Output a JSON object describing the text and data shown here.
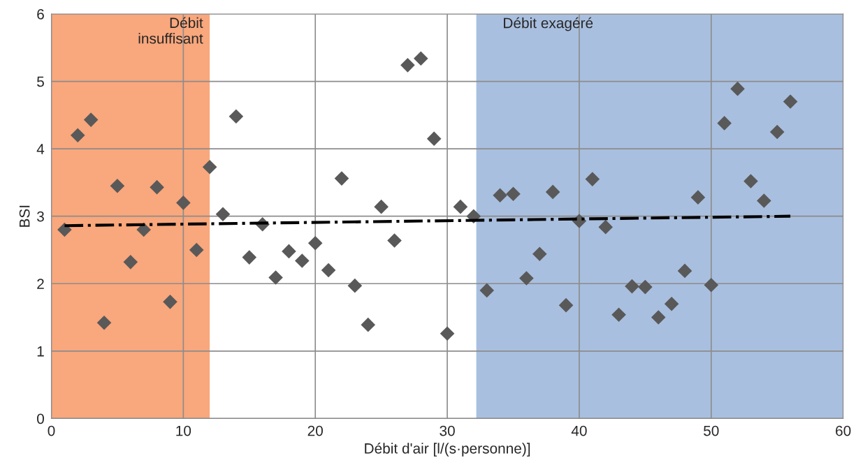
{
  "chart_data": {
    "type": "scatter",
    "xlabel": "Débit d'air [l/(s·personne)]",
    "ylabel": "BSI",
    "xlim": [
      0,
      60
    ],
    "xticks": [
      0,
      10,
      20,
      30,
      40,
      50,
      60
    ],
    "ylim": [
      0,
      6
    ],
    "yticks": [
      0,
      1,
      2,
      3,
      4,
      5,
      6
    ],
    "grid": true,
    "series": [
      {
        "color": "#595959",
        "marker": "diamond",
        "x": [
          1,
          2,
          3,
          4,
          5,
          6,
          7,
          8,
          9,
          10,
          11,
          12,
          13,
          14,
          15,
          16,
          17,
          18,
          19,
          20,
          21,
          22,
          23,
          24,
          25,
          26,
          27,
          28,
          29,
          30,
          31,
          32,
          33,
          34,
          35,
          36,
          37,
          38,
          39,
          40,
          41,
          42,
          43,
          44,
          45,
          46,
          47,
          48,
          49,
          50,
          51,
          52,
          53,
          54,
          55,
          56
        ],
        "values": [
          2.8,
          4.2,
          4.43,
          1.42,
          3.45,
          2.32,
          2.8,
          3.43,
          1.73,
          3.2,
          2.5,
          3.73,
          3.03,
          4.48,
          2.39,
          2.88,
          2.09,
          2.48,
          2.34,
          2.6,
          2.2,
          3.56,
          1.97,
          1.39,
          3.14,
          2.64,
          5.24,
          5.34,
          4.15,
          1.26,
          3.14,
          3.0,
          1.9,
          3.31,
          3.33,
          2.08,
          2.44,
          3.36,
          1.68,
          2.93,
          3.55,
          2.84,
          1.54,
          1.96,
          1.95,
          1.5,
          1.7,
          2.19,
          3.28,
          1.98,
          4.38,
          4.89,
          3.52,
          3.23,
          4.25,
          4.7
        ]
      },
      {
        "type": "line",
        "color": "#000000",
        "line_style": "dashdot",
        "marker": "none",
        "x": [
          1,
          56
        ],
        "values": [
          2.86,
          3.0
        ]
      }
    ],
    "bands": [
      {
        "axis": "x",
        "from": 0,
        "to": 12,
        "label": "Débit\ninsuffisant",
        "color": "#f9a77c"
      },
      {
        "axis": "x",
        "from": 32.2,
        "to": 60,
        "label": "Débit exagéré",
        "color": "#a9bfdf"
      }
    ]
  }
}
